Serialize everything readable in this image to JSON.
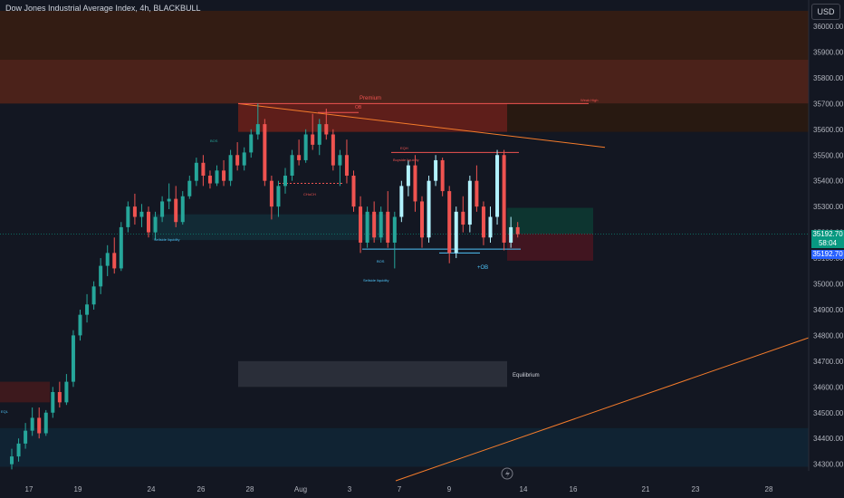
{
  "header": {
    "title": "Dow Jones Industrial Average Index, 4h, BLACKBULL",
    "currency": "USD"
  },
  "price_tags": {
    "last_price": "35192.70",
    "countdown": "58:04",
    "cursor_price": "35192.70"
  },
  "annotations": {
    "premium": "Premium",
    "ob_top": "OB",
    "weak_high": "Weak High",
    "eqh": "EQH",
    "buyside": "Buyside liquidity",
    "choch": "CHoCH",
    "bos_left": "BOS",
    "bos_mid": "BOS",
    "sellside_left": "Sellside liquidity",
    "sellside_bottom": "Sellside liquidity",
    "plus_ob": "+OB",
    "equilibrium": "Equilibrium",
    "eq_left": "EQL"
  },
  "colors": {
    "background": "#131722",
    "bull": "#26a69a",
    "bull_light": "#b2f2ff",
    "bear": "#ef5350",
    "trendline": "#f57c2b",
    "premium_zone": "#7a2c14",
    "discount_zone": "#0f2a3a",
    "equilibrium_zone": "#2a2e39",
    "price_tag": "#089981",
    "cursor_tag": "#2962ff"
  },
  "chart_data": {
    "type": "candlestick",
    "symbol": "Dow Jones Industrial Average Index",
    "interval": "4h",
    "exchange": "BLACKBULL",
    "y_axis": {
      "ticks": [
        36000,
        35900,
        35800,
        35700,
        35600,
        35500,
        35400,
        35300,
        35200,
        35100,
        35000,
        34900,
        34800,
        34700,
        34600,
        34500,
        34400,
        34300
      ],
      "range": [
        34280,
        36060
      ]
    },
    "x_axis": {
      "ticks": [
        "17",
        "19",
        "24",
        "26",
        "28",
        "Aug",
        "3",
        "7",
        "9",
        "14",
        "16",
        "21",
        "23",
        "28"
      ]
    },
    "last_price": 35192.7,
    "zones": [
      {
        "name": "premium-zone-top",
        "low": 35870,
        "high": 36060
      },
      {
        "name": "premium-zone",
        "low": 35700,
        "high": 35870
      },
      {
        "name": "ob-zone-top",
        "low": 35590,
        "high": 35700
      },
      {
        "name": "equilibrium-zone",
        "low": 34600,
        "high": 34700
      },
      {
        "name": "discount-zone",
        "low": 34290,
        "high": 34440
      },
      {
        "name": "sellside-zone",
        "low": 35170,
        "high": 35270
      },
      {
        "name": "target-zone",
        "low": 35195,
        "high": 35295
      },
      {
        "name": "stop-zone",
        "low": 35090,
        "high": 35195
      }
    ],
    "candles": [
      [
        34300,
        34360,
        34280,
        34330
      ],
      [
        34330,
        34400,
        34310,
        34380
      ],
      [
        34380,
        34460,
        34360,
        34430
      ],
      [
        34430,
        34520,
        34410,
        34480
      ],
      [
        34480,
        34520,
        34400,
        34420
      ],
      [
        34420,
        34510,
        34410,
        34500
      ],
      [
        34500,
        34600,
        34480,
        34580
      ],
      [
        34580,
        34620,
        34520,
        34540
      ],
      [
        34540,
        34650,
        34530,
        34620
      ],
      [
        34620,
        34820,
        34600,
        34800
      ],
      [
        34800,
        34900,
        34780,
        34880
      ],
      [
        34880,
        34960,
        34850,
        34920
      ],
      [
        34920,
        35010,
        34900,
        34990
      ],
      [
        34990,
        35100,
        34960,
        35070
      ],
      [
        35070,
        35150,
        35030,
        35120
      ],
      [
        35120,
        35180,
        35040,
        35060
      ],
      [
        35060,
        35240,
        35050,
        35220
      ],
      [
        35220,
        35320,
        35200,
        35300
      ],
      [
        35300,
        35350,
        35230,
        35260
      ],
      [
        35260,
        35310,
        35220,
        35280
      ],
      [
        35280,
        35300,
        35180,
        35200
      ],
      [
        35200,
        35280,
        35170,
        35260
      ],
      [
        35260,
        35340,
        35240,
        35320
      ],
      [
        35320,
        35390,
        35290,
        35330
      ],
      [
        35330,
        35380,
        35220,
        35240
      ],
      [
        35240,
        35360,
        35230,
        35340
      ],
      [
        35340,
        35420,
        35330,
        35400
      ],
      [
        35400,
        35490,
        35380,
        35470
      ],
      [
        35470,
        35500,
        35380,
        35420
      ],
      [
        35420,
        35440,
        35370,
        35390
      ],
      [
        35390,
        35460,
        35380,
        35440
      ],
      [
        35440,
        35480,
        35380,
        35400
      ],
      [
        35400,
        35520,
        35380,
        35500
      ],
      [
        35500,
        35550,
        35440,
        35460
      ],
      [
        35460,
        35530,
        35440,
        35510
      ],
      [
        35510,
        35600,
        35490,
        35580
      ],
      [
        35580,
        35700,
        35560,
        35620
      ],
      [
        35620,
        35640,
        35380,
        35400
      ],
      [
        35400,
        35420,
        35250,
        35300
      ],
      [
        35300,
        35400,
        35260,
        35380
      ],
      [
        35380,
        35450,
        35350,
        35420
      ],
      [
        35420,
        35520,
        35400,
        35500
      ],
      [
        35500,
        35560,
        35460,
        35480
      ],
      [
        35480,
        35600,
        35470,
        35580
      ],
      [
        35580,
        35660,
        35520,
        35540
      ],
      [
        35540,
        35640,
        35500,
        35620
      ],
      [
        35620,
        35680,
        35560,
        35580
      ],
      [
        35580,
        35600,
        35440,
        35460
      ],
      [
        35460,
        35520,
        35380,
        35500
      ],
      [
        35500,
        35560,
        35390,
        35420
      ],
      [
        35420,
        35440,
        35280,
        35300
      ],
      [
        35300,
        35340,
        35120,
        35160
      ],
      [
        35160,
        35300,
        35140,
        35280
      ],
      [
        35280,
        35320,
        35160,
        35180
      ],
      [
        35180,
        35300,
        35160,
        35280
      ],
      [
        35280,
        35360,
        35140,
        35160
      ],
      [
        35160,
        35280,
        35060,
        35260
      ],
      [
        35260,
        35400,
        35240,
        35380
      ],
      [
        35380,
        35480,
        35340,
        35460
      ],
      [
        35460,
        35500,
        35280,
        35320
      ],
      [
        35320,
        35340,
        35140,
        35180
      ],
      [
        35180,
        35420,
        35160,
        35400
      ],
      [
        35400,
        35500,
        35380,
        35480
      ],
      [
        35480,
        35490,
        35340,
        35360
      ],
      [
        35360,
        35380,
        35080,
        35120
      ],
      [
        35120,
        35300,
        35100,
        35280
      ],
      [
        35280,
        35340,
        35200,
        35230
      ],
      [
        35230,
        35420,
        35200,
        35400
      ],
      [
        35400,
        35460,
        35280,
        35300
      ],
      [
        35300,
        35320,
        35150,
        35180
      ],
      [
        35180,
        35300,
        35160,
        35260
      ],
      [
        35260,
        35520,
        35230,
        35500
      ],
      [
        35500,
        35520,
        35130,
        35160
      ],
      [
        35160,
        35260,
        35140,
        35220
      ],
      [
        35220,
        35240,
        35180,
        35193
      ]
    ]
  }
}
